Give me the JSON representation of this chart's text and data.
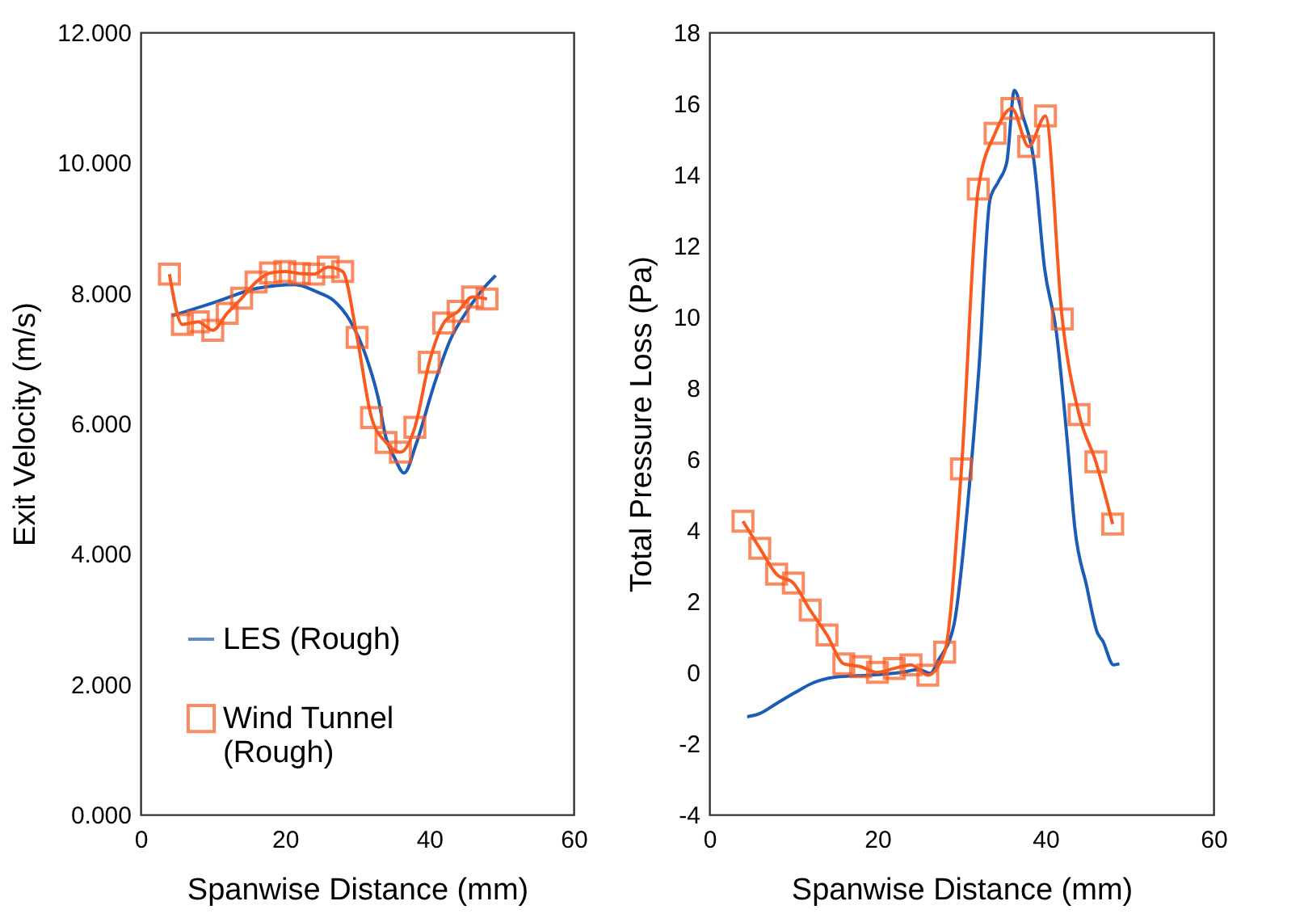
{
  "chart_data": [
    {
      "type": "line",
      "xlabel": "Spanwise Distance (mm)",
      "ylabel": "Exit Velocity (m/s)",
      "xlim": [
        0,
        60
      ],
      "xticks": [
        0,
        20,
        40,
        60
      ],
      "ylim": [
        0,
        12
      ],
      "yticks": [
        {
          "value": 0,
          "label": "0.000"
        },
        {
          "value": 2,
          "label": "2.000"
        },
        {
          "value": 4,
          "label": "4.000"
        },
        {
          "value": 6,
          "label": "6.000"
        },
        {
          "value": 8,
          "label": "8.000"
        },
        {
          "value": 10,
          "label": "10.000"
        },
        {
          "value": 12,
          "label": "12.000"
        }
      ],
      "grid": false,
      "legend": "bottom left",
      "series": [
        {
          "name": "LES (Rough)",
          "color": "#1a5cb8",
          "marker": "none",
          "x": [
            4.3,
            10.6,
            16,
            21.4,
            24.4,
            26.7,
            29,
            31.3,
            32.9,
            34.0,
            35.2,
            36.5,
            38.2,
            40.6,
            42.9,
            45.2,
            47.5,
            49.2
          ],
          "values": [
            7.65,
            7.87,
            8.07,
            8.13,
            8.02,
            7.89,
            7.58,
            7.01,
            6.4,
            5.78,
            5.47,
            5.24,
            5.69,
            6.57,
            7.28,
            7.72,
            8.07,
            8.27
          ]
        },
        {
          "name": "Wind Tunnel (Rough)",
          "color": "#fa5a1e",
          "marker": "square",
          "x": [
            4,
            5.8,
            8,
            10,
            12,
            14,
            16,
            18,
            20,
            22,
            24,
            26,
            28,
            30,
            32,
            34,
            36,
            38,
            40,
            42,
            44,
            46,
            48
          ],
          "values": [
            8.29,
            7.52,
            7.56,
            7.43,
            7.69,
            7.92,
            8.17,
            8.31,
            8.33,
            8.3,
            8.29,
            8.4,
            8.33,
            7.32,
            6.09,
            5.71,
            5.56,
            5.94,
            6.94,
            7.54,
            7.72,
            7.94,
            7.91
          ]
        }
      ]
    },
    {
      "type": "line",
      "xlabel": "Spanwise Distance (mm)",
      "ylabel": "Total Pressure Loss (Pa)",
      "xlim": [
        0,
        60
      ],
      "xticks": [
        0,
        20,
        40,
        60
      ],
      "ylim": [
        -4,
        18
      ],
      "yticks": [
        -4,
        -2,
        0,
        2,
        4,
        6,
        8,
        10,
        12,
        14,
        16,
        18
      ],
      "grid": false,
      "series": [
        {
          "color": "#1a5cb8",
          "marker": "none",
          "x": [
            4.5,
            5.9,
            7.9,
            10.2,
            12.4,
            15.1,
            19,
            22.9,
            24.9,
            26.3,
            27.2,
            29.1,
            30.8,
            32.1,
            33.4,
            34.4,
            35.4,
            36.3,
            37.3,
            38.6,
            39.9,
            41.3,
            42.6,
            43.5,
            44.9,
            46.2,
            46.8,
            48.1,
            48.8
          ],
          "values": [
            -1.25,
            -1.17,
            -0.89,
            -0.57,
            -0.29,
            -0.13,
            -0.08,
            0,
            0.08,
            -0.03,
            0.32,
            1.33,
            4.86,
            8.6,
            13.3,
            13.8,
            14.35,
            16.37,
            15.65,
            14.43,
            11.35,
            9.57,
            6.49,
            4.05,
            2.43,
            1.1,
            0.89,
            0.21,
            0.24
          ]
        },
        {
          "color": "#fa5a1e",
          "marker": "square",
          "x": [
            4,
            6,
            8,
            10,
            12,
            14,
            16,
            18,
            20,
            22,
            24,
            26,
            28,
            30,
            32,
            34,
            36,
            38,
            40,
            42,
            44,
            46,
            48
          ],
          "values": [
            4.25,
            3.49,
            2.76,
            2.51,
            1.75,
            1.05,
            0.24,
            0.16,
            0.0,
            0.11,
            0.21,
            -0.08,
            0.57,
            5.72,
            13.59,
            15.16,
            15.86,
            14.79,
            15.65,
            9.94,
            7.25,
            5.92,
            4.17
          ]
        }
      ]
    }
  ]
}
